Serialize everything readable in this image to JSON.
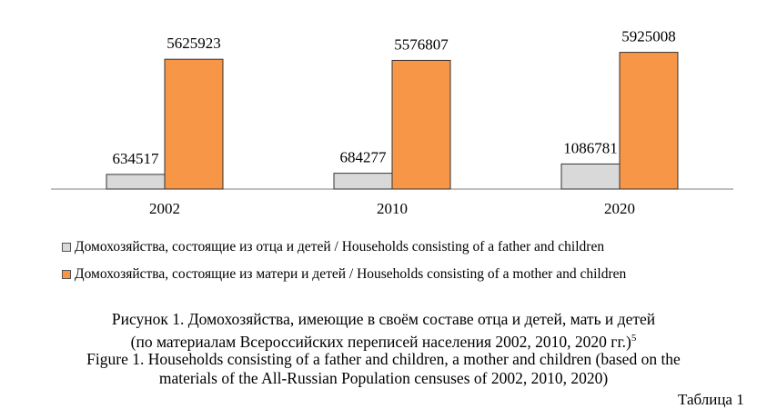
{
  "colors": {
    "father": "#d9d9d9",
    "mother": "#f79646",
    "bar_stroke": "#333333",
    "axis": "#808080"
  },
  "legend": {
    "father": "Домохозяйства, состоящие из отца и детей / Households consisting of a father and children",
    "mother": "Домохозяйства, состоящие из матери и детей / Households consisting of a mother and children"
  },
  "caption": {
    "ru_line1": "Рисунок 1. Домохозяйства, имеющие в своём составе отца и детей, мать и детей",
    "ru_line2": "(по материалам Всероссийских переписей населения 2002, 2010, 2020 гг.)",
    "footnote": "5",
    "en_line1": "Figure 1. Households consisting of a father and children, a mother and children (based on the",
    "en_line2": "materials of the All-Russian Population censuses of 2002, 2010, 2020)"
  },
  "table_label": "Таблица 1",
  "chart_data": {
    "type": "bar",
    "categories": [
      "2002",
      "2010",
      "2020"
    ],
    "series": [
      {
        "name": "Домохозяйства, состоящие из отца и детей / Households consisting of a father and children",
        "values": [
          634517,
          684277,
          1086781
        ],
        "labels": [
          "634517",
          "684277",
          "1086781"
        ]
      },
      {
        "name": "Домохозяйства, состоящие из матери и детей / Households consisting of a mother and children",
        "values": [
          5625923,
          5576807,
          5925008
        ],
        "labels": [
          "5625923",
          "5576807",
          "5925008"
        ]
      }
    ],
    "ylim": [
      0,
      6500000
    ],
    "grid": false,
    "legend_position": "bottom"
  }
}
